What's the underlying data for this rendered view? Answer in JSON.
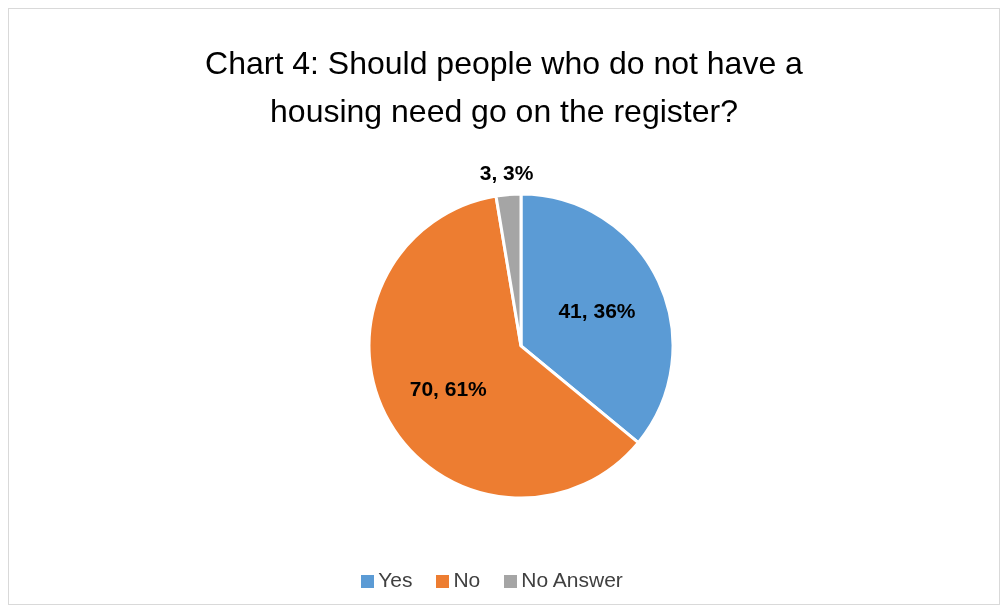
{
  "chart_data": {
    "type": "pie",
    "title": "Chart 4: Should people who do not have a housing need go on the register?",
    "categories": [
      "Yes",
      "No",
      "No Answer"
    ],
    "values": [
      41,
      70,
      3
    ],
    "value_labels": [
      "41, 36%",
      "70, 61%",
      "3, 3%"
    ],
    "colors": [
      "#5b9bd5",
      "#ed7d31",
      "#a5a5a5"
    ],
    "legend": "bottom"
  }
}
